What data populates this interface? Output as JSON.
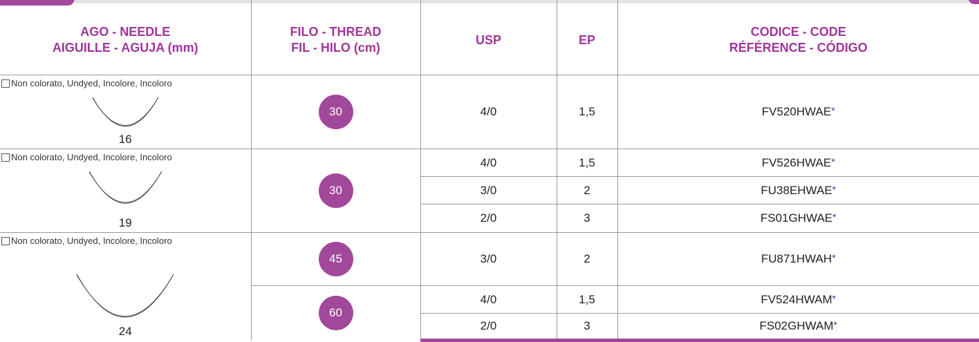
{
  "header": {
    "columns": [
      [
        "AGO - NEEDLE",
        "AIGUILLE - AGUJA (mm)"
      ],
      [
        "FILO - THREAD",
        "FIL -  HILO (cm)"
      ],
      [
        "USP"
      ],
      [
        "EP"
      ],
      [
        "CODICE - CODE",
        "RÉFÉRENCE - CÓDIGO"
      ]
    ]
  },
  "groups": [
    {
      "needle_label": "Non colorato, Undyed, Incolore, Incoloro",
      "needle_size": "16",
      "threads": [
        {
          "length": "30",
          "rows": [
            {
              "usp": "4/0",
              "ep": "1,5",
              "code": "FV520HWAE",
              "mark": "*"
            }
          ]
        }
      ]
    },
    {
      "needle_label": "Non colorato, Undyed, Incolore, Incoloro",
      "needle_size": "19",
      "threads": [
        {
          "length": "30",
          "rows": [
            {
              "usp": "4/0",
              "ep": "1,5",
              "code": "FV526HWAE",
              "mark": "*"
            },
            {
              "usp": "3/0",
              "ep": "2",
              "code": "FU38EHWAE",
              "mark": "*"
            },
            {
              "usp": "2/0",
              "ep": "3",
              "code": "FS01GHWAE",
              "mark": "*"
            }
          ]
        }
      ]
    },
    {
      "needle_label": "Non colorato, Undyed, Incolore, Incoloro",
      "needle_size": "24",
      "threads": [
        {
          "length": "45",
          "rows": [
            {
              "usp": "3/0",
              "ep": "2",
              "code": "FU871HWAH",
              "mark": "*"
            }
          ]
        },
        {
          "length": "60",
          "rows": [
            {
              "usp": "4/0",
              "ep": "1,5",
              "code": "FV524HWAM",
              "mark": "*"
            },
            {
              "usp": "2/0",
              "ep": "3",
              "code": "FS02GHWAM",
              "mark": "*"
            }
          ]
        }
      ]
    }
  ]
}
